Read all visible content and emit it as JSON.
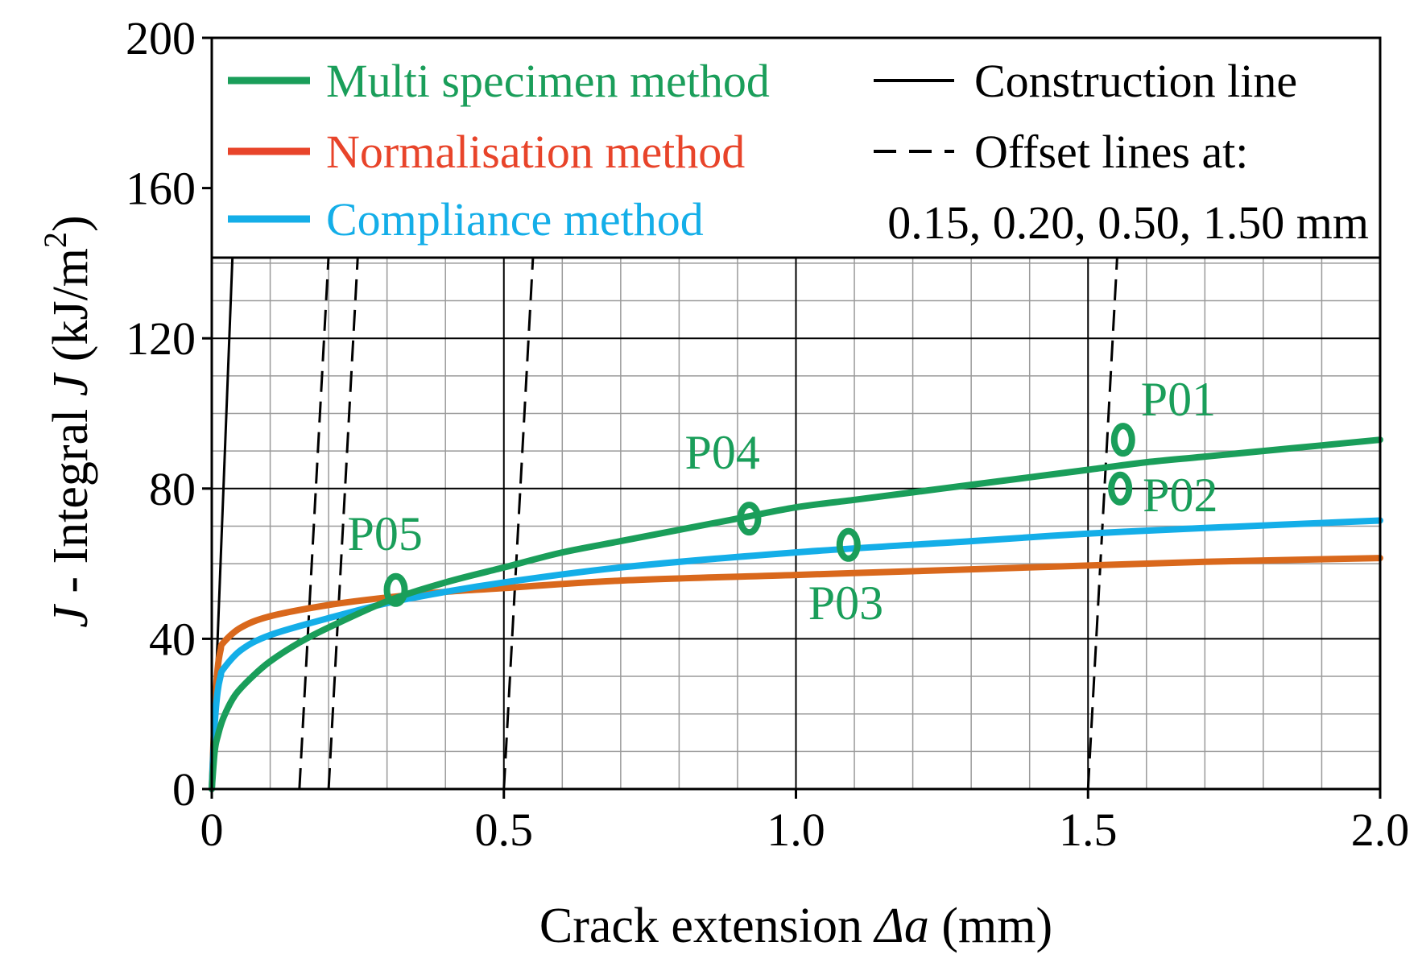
{
  "chart_data": {
    "type": "line",
    "title": "",
    "xlabel_prefix": "Crack extension ",
    "xlabel_symbol": "Δa",
    "xlabel_suffix": " (mm)",
    "ylabel_symbol": "J",
    "ylabel_text": " - Integral ",
    "ylabel_symbol2": "J",
    "ylabel_unit": " (kJ/m",
    "ylabel_exp": "2",
    "ylabel_close": ")",
    "xlim": [
      0,
      2.0
    ],
    "ylim": [
      0,
      200
    ],
    "x_ticks": [
      {
        "value": 0,
        "label": "0"
      },
      {
        "value": 0.5,
        "label": "0.5"
      },
      {
        "value": 1.0,
        "label": "1.0"
      },
      {
        "value": 1.5,
        "label": "1.5"
      },
      {
        "value": 2.0,
        "label": "2.0"
      }
    ],
    "y_ticks": [
      {
        "value": 0,
        "label": "0"
      },
      {
        "value": 40,
        "label": "40"
      },
      {
        "value": 80,
        "label": "80"
      },
      {
        "value": 120,
        "label": "120"
      },
      {
        "value": 160,
        "label": "160"
      },
      {
        "value": 200,
        "label": "200"
      }
    ],
    "grid": {
      "major_x": 0.5,
      "major_y": 40,
      "minor_x": 0.1,
      "minor_y": 10,
      "visible_below_y": 142
    },
    "colors": {
      "multi": "#1a9e5a",
      "normalisation": "#e8442a",
      "normalisation_line": "#d9681c",
      "compliance": "#14aee8",
      "construction": "#000000",
      "label_green": "#1a9e5a"
    },
    "legend": {
      "position": "top",
      "entries": [
        {
          "id": "multi",
          "label": "Multi specimen method",
          "style": "solid-thick",
          "color": "#1a9e5a"
        },
        {
          "id": "normalisation",
          "label": "Normalisation method",
          "style": "solid-thick",
          "color": "#e8442a"
        },
        {
          "id": "compliance",
          "label": "Compliance method",
          "style": "solid-thick",
          "color": "#14aee8"
        },
        {
          "id": "construction",
          "label": "Construction line",
          "style": "solid-thin",
          "color": "#000000"
        },
        {
          "id": "offset",
          "label": "Offset lines at:",
          "style": "dashed",
          "color": "#000000"
        }
      ],
      "offset_values_text": "0.15, 0.20, 0.50, 1.50 mm"
    },
    "series": [
      {
        "id": "multi",
        "name": "Multi specimen method",
        "x": [
          0,
          0.005,
          0.01,
          0.02,
          0.04,
          0.07,
          0.1,
          0.15,
          0.2,
          0.3,
          0.4,
          0.5,
          0.6,
          0.7,
          0.8,
          0.9,
          1.0,
          1.1,
          1.2,
          1.3,
          1.4,
          1.5,
          1.6,
          1.7,
          1.8,
          1.9,
          2.0
        ],
        "y": [
          0,
          10,
          14,
          19,
          25,
          30,
          34,
          39,
          43,
          50,
          55,
          59,
          63,
          66,
          69,
          72,
          75,
          77,
          79,
          81,
          83,
          85,
          87,
          88.5,
          90,
          91.5,
          93
        ]
      },
      {
        "id": "normalisation",
        "name": "Normalisation method",
        "x": [
          0,
          0.005,
          0.01,
          0.015,
          0.02,
          0.05,
          0.1,
          0.2,
          0.3,
          0.4,
          0.5,
          0.7,
          1.0,
          1.3,
          1.5,
          1.7,
          2.0
        ],
        "y": [
          0,
          20,
          32,
          37,
          39,
          43,
          46,
          49,
          51,
          52.5,
          53.5,
          55.5,
          57,
          58.5,
          59.5,
          60.5,
          61.5
        ]
      },
      {
        "id": "compliance",
        "name": "Compliance method",
        "x": [
          0,
          0.005,
          0.01,
          0.015,
          0.02,
          0.05,
          0.1,
          0.2,
          0.3,
          0.4,
          0.5,
          0.7,
          1.0,
          1.3,
          1.5,
          1.7,
          2.0
        ],
        "y": [
          0,
          17,
          26,
          30,
          32,
          37,
          41,
          45.5,
          49.5,
          52.5,
          55,
          59,
          63,
          66,
          68,
          69.5,
          71.5
        ]
      }
    ],
    "construction_line": {
      "x": [
        0,
        0.05
      ],
      "y": [
        0,
        200
      ]
    },
    "offset_lines": [
      {
        "offset": 0.15,
        "x": [
          0.15,
          0.2
        ],
        "y": [
          0,
          142
        ]
      },
      {
        "offset": 0.2,
        "x": [
          0.2,
          0.25
        ],
        "y": [
          0,
          142
        ]
      },
      {
        "offset": 0.5,
        "x": [
          0.5,
          0.55
        ],
        "y": [
          0,
          142
        ]
      },
      {
        "offset": 1.5,
        "x": [
          1.5,
          1.55
        ],
        "y": [
          0,
          142
        ]
      }
    ],
    "points": [
      {
        "label": "P01",
        "x": 1.56,
        "y": 93,
        "label_side": "above-right"
      },
      {
        "label": "P02",
        "x": 1.555,
        "y": 80,
        "label_side": "right"
      },
      {
        "label": "P03",
        "x": 1.09,
        "y": 65,
        "label_side": "below"
      },
      {
        "label": "P04",
        "x": 0.92,
        "y": 72,
        "label_side": "above"
      },
      {
        "label": "P05",
        "x": 0.315,
        "y": 53,
        "label_side": "above"
      }
    ]
  }
}
